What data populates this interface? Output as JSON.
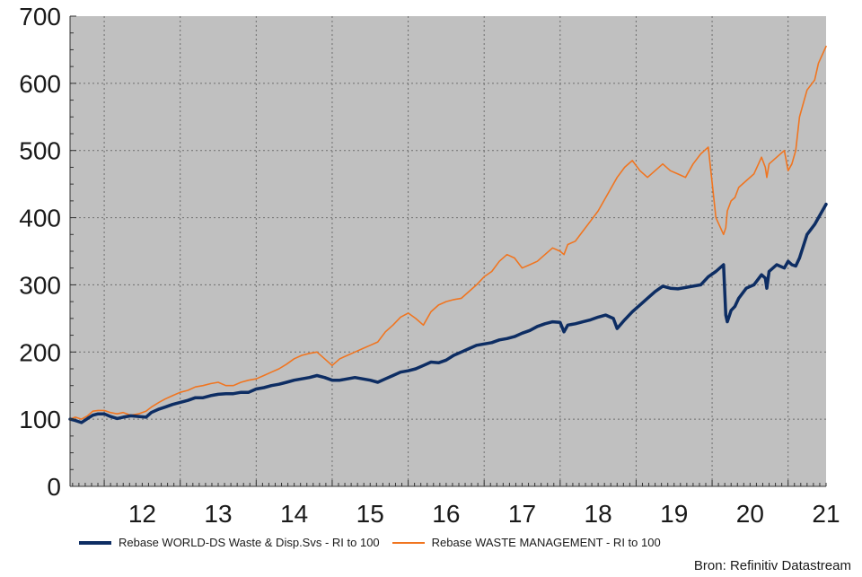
{
  "chart_data": {
    "type": "line",
    "source": "Bron: Refinitiv Datastream",
    "y_ticks": [
      "0",
      "100",
      "200",
      "300",
      "400",
      "500",
      "600",
      "700"
    ],
    "ylim": [
      0,
      700
    ],
    "x_ticks": [
      "12",
      "13",
      "14",
      "15",
      "16",
      "17",
      "18",
      "19",
      "20",
      "21"
    ],
    "xlim": [
      2011.55,
      2021.5
    ],
    "grid": true,
    "legend": "bottom",
    "background_color": "#c0c0c0",
    "series": [
      {
        "name": "Rebase WORLD-DS Waste & Disp.Svs - RI to 100",
        "color": "#0d2d63",
        "x": [
          2011.55,
          2011.62,
          2011.7,
          2011.78,
          2011.85,
          2011.92,
          2012.0,
          2012.08,
          2012.17,
          2012.25,
          2012.35,
          2012.45,
          2012.55,
          2012.62,
          2012.72,
          2012.8,
          2012.9,
          2013.0,
          2013.1,
          2013.2,
          2013.3,
          2013.4,
          2013.5,
          2013.6,
          2013.7,
          2013.8,
          2013.9,
          2014.0,
          2014.1,
          2014.2,
          2014.3,
          2014.4,
          2014.5,
          2014.6,
          2014.7,
          2014.8,
          2014.9,
          2015.0,
          2015.1,
          2015.2,
          2015.3,
          2015.4,
          2015.5,
          2015.6,
          2015.7,
          2015.8,
          2015.9,
          2016.0,
          2016.1,
          2016.2,
          2016.3,
          2016.4,
          2016.5,
          2016.6,
          2016.7,
          2016.8,
          2016.9,
          2017.0,
          2017.1,
          2017.2,
          2017.3,
          2017.4,
          2017.5,
          2017.6,
          2017.7,
          2017.8,
          2017.9,
          2018.0,
          2018.05,
          2018.1,
          2018.2,
          2018.3,
          2018.4,
          2018.5,
          2018.6,
          2018.7,
          2018.75,
          2018.85,
          2018.95,
          2019.05,
          2019.15,
          2019.25,
          2019.35,
          2019.45,
          2019.55,
          2019.65,
          2019.75,
          2019.85,
          2019.95,
          2020.05,
          2020.15,
          2020.18,
          2020.2,
          2020.25,
          2020.3,
          2020.35,
          2020.45,
          2020.55,
          2020.65,
          2020.7,
          2020.72,
          2020.75,
          2020.85,
          2020.95,
          2021.0,
          2021.05,
          2021.1,
          2021.15,
          2021.25,
          2021.35,
          2021.4,
          2021.5
        ],
        "values": [
          100,
          98,
          95,
          101,
          106,
          108,
          108,
          104,
          101,
          103,
          105,
          104,
          103,
          110,
          115,
          118,
          122,
          125,
          128,
          132,
          132,
          135,
          137,
          138,
          138,
          140,
          140,
          145,
          147,
          150,
          152,
          155,
          158,
          160,
          162,
          165,
          162,
          158,
          158,
          160,
          162,
          160,
          158,
          155,
          160,
          165,
          170,
          172,
          175,
          180,
          185,
          184,
          188,
          195,
          200,
          205,
          210,
          212,
          214,
          218,
          220,
          223,
          228,
          232,
          238,
          242,
          245,
          244,
          230,
          240,
          242,
          245,
          248,
          252,
          255,
          250,
          235,
          248,
          260,
          270,
          280,
          290,
          298,
          295,
          294,
          296,
          298,
          300,
          312,
          320,
          330,
          255,
          245,
          262,
          268,
          280,
          295,
          300,
          315,
          310,
          295,
          320,
          330,
          325,
          335,
          330,
          328,
          340,
          375,
          390,
          400,
          420
        ]
      },
      {
        "name": "Rebase WASTE MANAGEMENT - RI to 100",
        "color": "#f07520",
        "x": [
          2011.55,
          2011.62,
          2011.7,
          2011.78,
          2011.85,
          2011.92,
          2012.0,
          2012.08,
          2012.17,
          2012.25,
          2012.35,
          2012.45,
          2012.55,
          2012.62,
          2012.72,
          2012.8,
          2012.9,
          2013.0,
          2013.1,
          2013.2,
          2013.3,
          2013.4,
          2013.5,
          2013.6,
          2013.7,
          2013.8,
          2013.9,
          2014.0,
          2014.1,
          2014.2,
          2014.3,
          2014.4,
          2014.5,
          2014.6,
          2014.7,
          2014.8,
          2014.9,
          2015.0,
          2015.1,
          2015.2,
          2015.3,
          2015.4,
          2015.5,
          2015.6,
          2015.7,
          2015.8,
          2015.9,
          2016.0,
          2016.1,
          2016.2,
          2016.3,
          2016.4,
          2016.5,
          2016.6,
          2016.7,
          2016.8,
          2016.9,
          2017.0,
          2017.1,
          2017.2,
          2017.3,
          2017.4,
          2017.5,
          2017.6,
          2017.7,
          2017.8,
          2017.9,
          2018.0,
          2018.05,
          2018.1,
          2018.2,
          2018.3,
          2018.4,
          2018.5,
          2018.6,
          2018.7,
          2018.75,
          2018.85,
          2018.95,
          2019.05,
          2019.15,
          2019.25,
          2019.35,
          2019.45,
          2019.55,
          2019.65,
          2019.75,
          2019.85,
          2019.95,
          2020.05,
          2020.15,
          2020.18,
          2020.2,
          2020.25,
          2020.3,
          2020.35,
          2020.45,
          2020.55,
          2020.65,
          2020.7,
          2020.72,
          2020.75,
          2020.85,
          2020.95,
          2021.0,
          2021.05,
          2021.1,
          2021.15,
          2021.25,
          2021.35,
          2021.4,
          2021.5
        ],
        "values": [
          100,
          103,
          100,
          105,
          112,
          113,
          113,
          110,
          108,
          110,
          106,
          108,
          112,
          118,
          125,
          130,
          135,
          140,
          143,
          148,
          150,
          153,
          155,
          150,
          150,
          155,
          158,
          160,
          165,
          170,
          175,
          182,
          190,
          195,
          198,
          200,
          190,
          180,
          190,
          195,
          200,
          205,
          210,
          215,
          230,
          240,
          252,
          258,
          250,
          240,
          260,
          270,
          275,
          278,
          280,
          290,
          300,
          312,
          320,
          335,
          345,
          340,
          325,
          330,
          335,
          345,
          355,
          350,
          345,
          360,
          365,
          380,
          395,
          410,
          430,
          450,
          460,
          475,
          485,
          470,
          460,
          470,
          480,
          470,
          465,
          460,
          480,
          495,
          505,
          400,
          375,
          385,
          410,
          425,
          430,
          445,
          455,
          465,
          490,
          475,
          460,
          480,
          490,
          500,
          470,
          480,
          500,
          550,
          590,
          605,
          630,
          655
        ]
      }
    ]
  }
}
